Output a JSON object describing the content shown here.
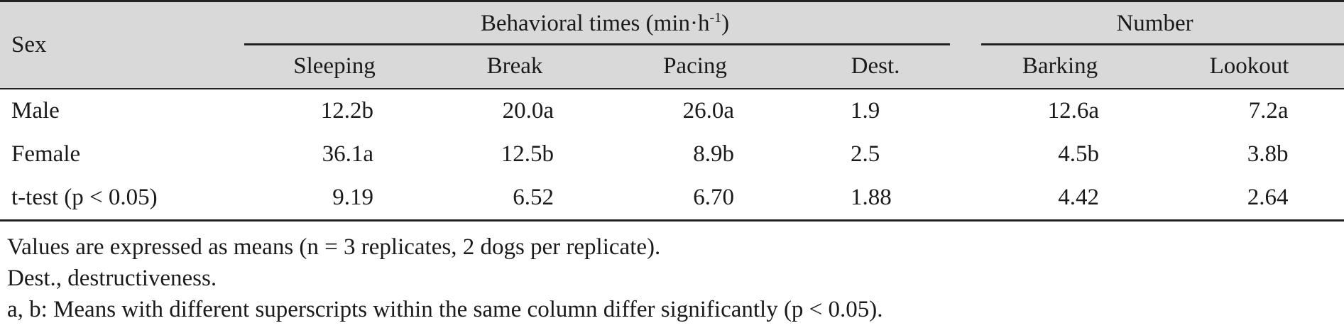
{
  "header": {
    "sex_label": "Sex",
    "group1_label": "Behavioral times (min·h",
    "group1_sup": "-1",
    "group1_close": ")",
    "group2_label": "Number",
    "columns": [
      "Sleeping",
      "Break",
      "Pacing",
      "Dest.",
      "Barking",
      "Lookout"
    ]
  },
  "rows": [
    {
      "label": "Male",
      "values": [
        "12.2b",
        "20.0a",
        "26.0a",
        "1.9",
        "12.6a",
        "7.2a"
      ]
    },
    {
      "label": "Female",
      "values": [
        "36.1a",
        "12.5b",
        "8.9b",
        "2.5",
        "4.5b",
        "3.8b"
      ]
    },
    {
      "label": "t-test (p < 0.05)",
      "values": [
        "9.19",
        "6.52",
        "6.70",
        "1.88",
        "4.42",
        "2.64"
      ]
    }
  ],
  "notes": [
    "Values are expressed as means (n = 3 replicates, 2 dogs per replicate).",
    "Dest., destructiveness.",
    "a, b: Means with different superscripts within the same column differ significantly (p < 0.05)."
  ]
}
